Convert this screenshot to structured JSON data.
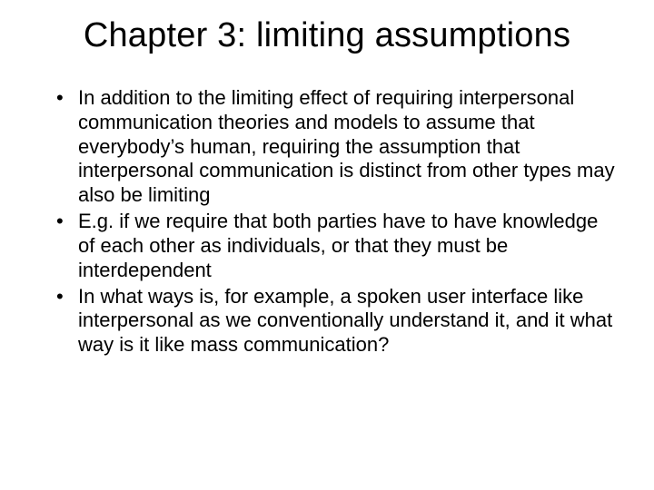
{
  "slide": {
    "background_color": "#ffffff",
    "text_color": "#000000",
    "font_family": "Arial",
    "title": {
      "text": "Chapter 3:  limiting assumptions",
      "fontsize": 38,
      "weight": "normal",
      "align": "center"
    },
    "bullets": {
      "fontsize": 22,
      "line_height": 1.22,
      "marker": "•",
      "items": [
        "In addition to the limiting effect of requiring interpersonal communication theories and models  to assume that everybody’s human, requiring the assumption that interpersonal communication is distinct from other types may also be limiting",
        "E.g. if we require that both parties have to have knowledge of each other as individuals, or that they must be interdependent",
        "In what ways is, for example, a spoken user interface like interpersonal as we conventionally understand it, and it what way is it like mass communication?"
      ]
    }
  }
}
